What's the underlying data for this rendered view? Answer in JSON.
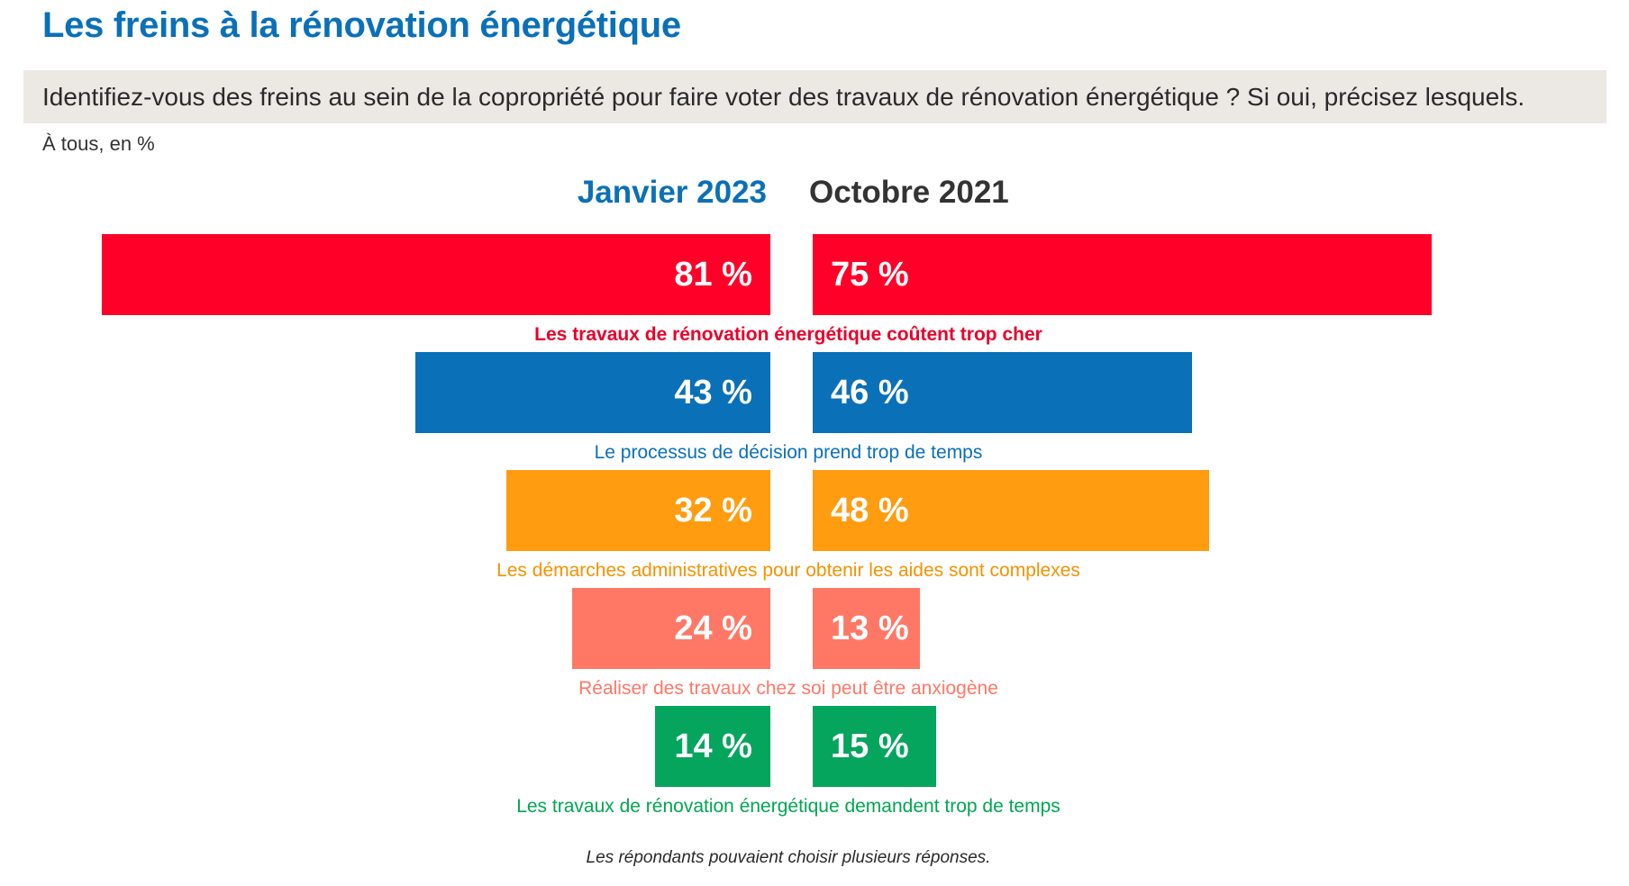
{
  "title": "Les freins à la rénovation énergétique",
  "question": "Identifiez-vous des freins au sein de la copropriété pour faire voter des travaux de rénovation énergétique ? Si oui, précisez lesquels.",
  "base": "À tous, en %",
  "footnote": "Les répondants pouvaient choisir plusieurs réponses.",
  "chart_data": {
    "type": "bar",
    "orientation": "horizontal-butterfly",
    "unit": "%",
    "series": [
      {
        "name": "Janvier 2023",
        "color": "#0a70b8",
        "values": [
          81,
          43,
          32,
          24,
          14
        ],
        "labels": [
          "81 %",
          "43 %",
          "32 %",
          "24 %",
          "14 %"
        ]
      },
      {
        "name": "Octobre 2021",
        "color": "#333333",
        "values": [
          75,
          46,
          48,
          13,
          15
        ],
        "labels": [
          "75 %",
          "46 %",
          "48 %",
          "13 %",
          "15 %"
        ]
      }
    ],
    "categories": [
      "Les travaux de rénovation énergétique coûtent trop cher",
      "Le processus de décision prend trop de temps",
      "Les démarches administratives pour obtenir les aides sont complexes",
      "Réaliser des travaux chez soi peut être anxiogène",
      "Les travaux de rénovation énergétique demandent trop de temps"
    ],
    "category_colors": [
      "#ff0029",
      "#0a70b8",
      "#ff9c10",
      "#ff7866",
      "#05a55e"
    ],
    "category_text_colors": [
      "#e8002a",
      "#0a70b8",
      "#f39200",
      "#ff7866",
      "#00a651"
    ]
  }
}
